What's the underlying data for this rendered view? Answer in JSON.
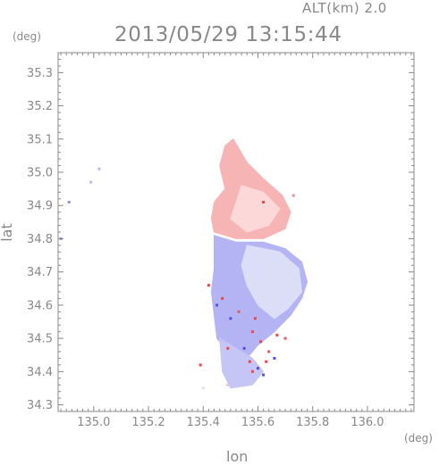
{
  "header": {
    "altitude": "ALT(km) 2.0",
    "timestamp": "2013/05/29 13:15:44"
  },
  "chart_data": {
    "type": "heatmap",
    "title": "2013/05/29 13:15:44",
    "subtitle": "ALT(km) 2.0",
    "xlabel": "lon",
    "ylabel": "lat",
    "x_unit": "(deg)",
    "y_unit": "(deg)",
    "xlim": [
      134.87,
      136.17
    ],
    "ylim": [
      34.28,
      35.36
    ],
    "x_ticks": [
      135.0,
      135.2,
      135.4,
      135.6,
      135.8,
      136.0
    ],
    "x_tick_labels": [
      "135.0",
      "135.2",
      "135.4",
      "135.6",
      "135.8",
      "136.0"
    ],
    "y_ticks": [
      34.3,
      34.4,
      34.5,
      34.6,
      34.7,
      34.8,
      34.9,
      35.0,
      35.1,
      35.2,
      35.3
    ],
    "y_tick_labels": [
      "34.3",
      "34.4",
      "34.5",
      "34.6",
      "34.7",
      "34.8",
      "34.9",
      "35.0",
      "35.1",
      "35.2",
      "35.3"
    ],
    "grid": false,
    "colors": {
      "positive": "#f4a0a0",
      "positive_light": "#fbd2d2",
      "negative": "#9f9ff2",
      "negative_light": "#dadcf8",
      "strong_positive": "#e84848",
      "strong_negative": "#5050e0",
      "axis": "#888888"
    },
    "regions": [
      {
        "name": "positive",
        "color": "#f7b4b4",
        "outline": [
          [
            135.51,
            35.1
          ],
          [
            135.56,
            35.03
          ],
          [
            135.62,
            34.98
          ],
          [
            135.69,
            34.93
          ],
          [
            135.72,
            34.88
          ],
          [
            135.7,
            34.83
          ],
          [
            135.62,
            34.8
          ],
          [
            135.52,
            34.8
          ],
          [
            135.44,
            34.82
          ],
          [
            135.43,
            34.86
          ],
          [
            135.44,
            34.91
          ],
          [
            135.48,
            34.95
          ],
          [
            135.46,
            35.02
          ],
          [
            135.48,
            35.08
          ]
        ]
      },
      {
        "name": "positive-light",
        "color": "#fcd8d8",
        "outline": [
          [
            135.54,
            34.96
          ],
          [
            135.62,
            34.94
          ],
          [
            135.68,
            34.89
          ],
          [
            135.64,
            34.84
          ],
          [
            135.56,
            34.82
          ],
          [
            135.5,
            34.86
          ]
        ]
      },
      {
        "name": "negative",
        "color": "#b4b4f4",
        "outline": [
          [
            135.44,
            34.81
          ],
          [
            135.52,
            34.79
          ],
          [
            135.62,
            34.79
          ],
          [
            135.7,
            34.77
          ],
          [
            135.76,
            34.73
          ],
          [
            135.78,
            34.67
          ],
          [
            135.76,
            34.62
          ],
          [
            135.72,
            34.57
          ],
          [
            135.66,
            34.52
          ],
          [
            135.6,
            34.48
          ],
          [
            135.56,
            34.44
          ],
          [
            135.5,
            34.45
          ],
          [
            135.45,
            34.5
          ],
          [
            135.44,
            34.57
          ],
          [
            135.43,
            34.64
          ],
          [
            135.44,
            34.71
          ],
          [
            135.44,
            34.77
          ]
        ]
      },
      {
        "name": "negative-light",
        "color": "#dcdef8",
        "outline": [
          [
            135.56,
            34.78
          ],
          [
            135.68,
            34.76
          ],
          [
            135.75,
            34.71
          ],
          [
            135.76,
            34.64
          ],
          [
            135.71,
            34.59
          ],
          [
            135.66,
            34.56
          ],
          [
            135.6,
            34.6
          ],
          [
            135.56,
            34.66
          ],
          [
            135.54,
            34.72
          ]
        ]
      },
      {
        "name": "negative-tail",
        "color": "#c6c6f6",
        "outline": [
          [
            135.46,
            34.5
          ],
          [
            135.52,
            34.47
          ],
          [
            135.58,
            34.44
          ],
          [
            135.62,
            34.4
          ],
          [
            135.58,
            34.36
          ],
          [
            135.5,
            34.35
          ],
          [
            135.47,
            34.4
          ]
        ]
      }
    ],
    "scatter_points": [
      {
        "lon": 135.58,
        "lat": 34.52,
        "color": "#e84848"
      },
      {
        "lon": 135.61,
        "lat": 34.49,
        "color": "#e84848"
      },
      {
        "lon": 135.64,
        "lat": 34.46,
        "color": "#e85a5a"
      },
      {
        "lon": 135.57,
        "lat": 34.43,
        "color": "#e84848"
      },
      {
        "lon": 135.6,
        "lat": 34.41,
        "color": "#5050e0"
      },
      {
        "lon": 135.63,
        "lat": 34.43,
        "color": "#e84848"
      },
      {
        "lon": 135.55,
        "lat": 34.47,
        "color": "#5050e0"
      },
      {
        "lon": 135.5,
        "lat": 34.56,
        "color": "#5050e0"
      },
      {
        "lon": 135.47,
        "lat": 34.62,
        "color": "#e84848"
      },
      {
        "lon": 135.42,
        "lat": 34.66,
        "color": "#e84848"
      },
      {
        "lon": 135.45,
        "lat": 34.6,
        "color": "#5050e0"
      },
      {
        "lon": 135.53,
        "lat": 34.58,
        "color": "#e85a5a"
      },
      {
        "lon": 135.67,
        "lat": 34.51,
        "color": "#e84848"
      },
      {
        "lon": 135.59,
        "lat": 34.56,
        "color": "#e84848"
      },
      {
        "lon": 135.62,
        "lat": 34.39,
        "color": "#5050e0"
      },
      {
        "lon": 135.39,
        "lat": 34.42,
        "color": "#e84848"
      },
      {
        "lon": 135.58,
        "lat": 34.4,
        "color": "#e84848"
      },
      {
        "lon": 135.49,
        "lat": 34.47,
        "color": "#e84848"
      },
      {
        "lon": 135.66,
        "lat": 34.44,
        "color": "#5050e0"
      },
      {
        "lon": 135.7,
        "lat": 34.5,
        "color": "#e85a5a"
      },
      {
        "lon": 135.4,
        "lat": 34.35,
        "color": "#e0e0f8"
      },
      {
        "lon": 135.49,
        "lat": 34.36,
        "color": "#f0c0c0"
      },
      {
        "lon": 134.91,
        "lat": 34.91,
        "color": "#9090e8"
      },
      {
        "lon": 134.88,
        "lat": 34.8,
        "color": "#9090e8"
      },
      {
        "lon": 135.02,
        "lat": 35.01,
        "color": "#b8b8f0"
      },
      {
        "lon": 134.99,
        "lat": 34.97,
        "color": "#b8b8f0"
      },
      {
        "lon": 135.62,
        "lat": 34.91,
        "color": "#e84848"
      },
      {
        "lon": 135.73,
        "lat": 34.93,
        "color": "#f09090"
      }
    ]
  }
}
